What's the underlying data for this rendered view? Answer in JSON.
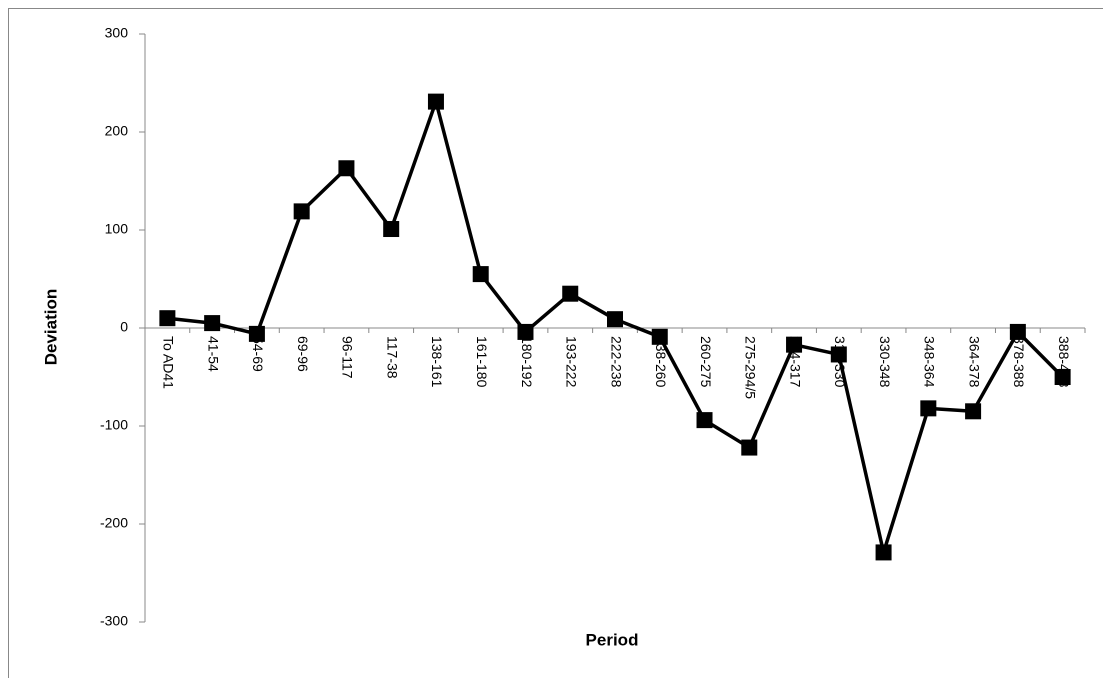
{
  "chart_data": {
    "type": "line",
    "xlabel": "Period",
    "ylabel": "Deviation",
    "categories": [
      "To AD41",
      "41-54",
      "54-69",
      "69-96",
      "96-117",
      "117-38",
      "138-161",
      "161-180",
      "180-192",
      "193-222",
      "222-238",
      "238-260",
      "260-275",
      "275-294/5",
      "294-317",
      "317-330",
      "330-348",
      "348-364",
      "364-378",
      "378-388",
      "388-408"
    ],
    "series": [
      {
        "name": "Deviation",
        "color": "#000000",
        "values": [
          10,
          5,
          -6,
          119,
          163,
          101,
          231,
          55,
          -4,
          35,
          9,
          -9,
          -94,
          -122,
          -17,
          -27,
          -229,
          -82,
          -85,
          -4,
          -50
        ]
      }
    ],
    "ylim": [
      -300,
      300
    ],
    "yticks": [
      -300,
      -200,
      -100,
      0,
      100,
      200,
      300
    ],
    "grid": false
  }
}
